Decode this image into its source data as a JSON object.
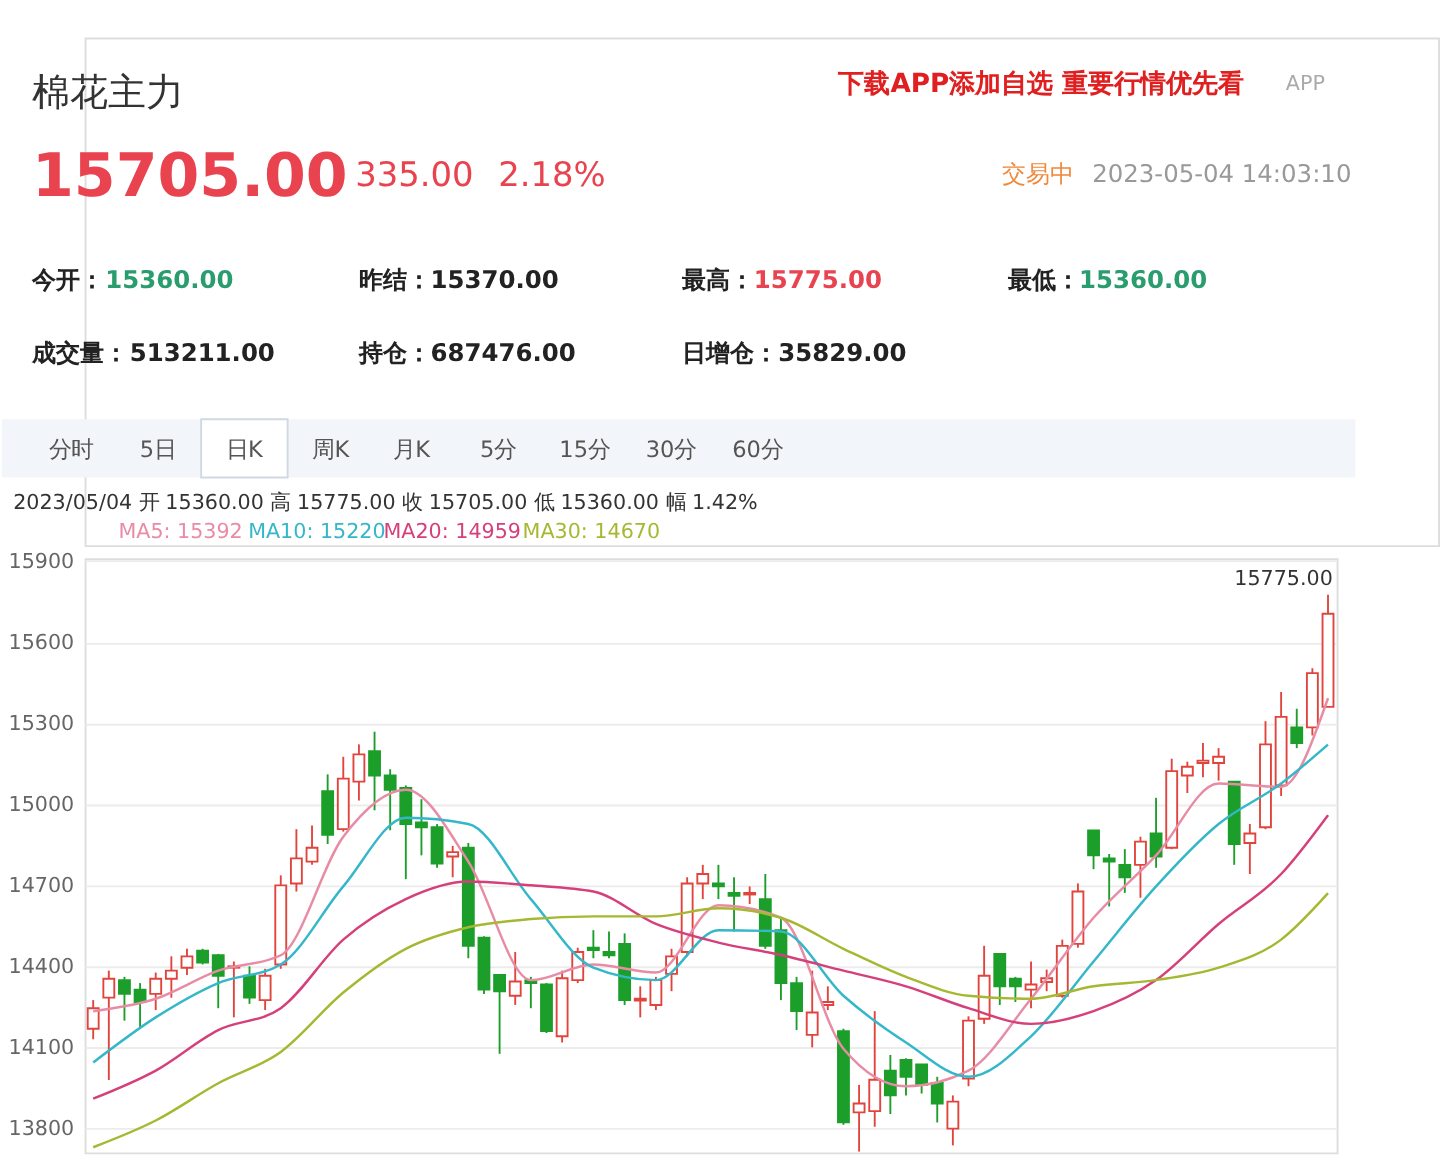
{
  "chart_data": {
    "type": "candlestick",
    "title": "棉花主力",
    "categories": [
      null,
      null,
      null,
      null,
      null,
      null,
      null,
      null,
      null,
      null,
      null,
      null,
      null,
      null,
      null,
      null,
      null,
      null,
      null,
      null,
      null,
      null,
      null,
      null,
      null,
      null,
      null,
      null,
      null,
      null,
      null,
      null,
      null,
      null,
      null,
      null,
      null,
      null,
      null,
      null,
      null,
      null,
      null,
      null,
      null,
      null,
      null,
      null,
      null,
      null,
      null,
      null,
      null,
      null,
      null,
      null,
      null,
      null,
      null,
      null,
      null,
      null,
      null,
      null,
      null,
      null,
      null,
      null,
      null,
      null,
      null,
      null,
      null,
      null,
      null,
      null,
      null,
      null,
      null,
      null
    ],
    "ohlc": [
      [
        14168,
        14274,
        14129,
        14244
      ],
      [
        14283,
        14383,
        13978,
        14353
      ],
      [
        14348,
        14360,
        14198,
        14297
      ],
      [
        14313,
        14337,
        14168,
        14267
      ],
      [
        14297,
        14376,
        14237,
        14353
      ],
      [
        14353,
        14436,
        14283,
        14383
      ],
      [
        14394,
        14464,
        14367,
        14436
      ],
      [
        14457,
        14464,
        14406,
        14413
      ],
      [
        14440,
        14445,
        14244,
        14364
      ],
      [
        14394,
        14417,
        14210,
        14399
      ],
      [
        14364,
        14399,
        14260,
        14283
      ],
      [
        14274,
        14390,
        14237,
        14364
      ],
      [
        14406,
        14736,
        14390,
        14699
      ],
      [
        14706,
        14907,
        14676,
        14799
      ],
      [
        14787,
        14921,
        14775,
        14838
      ],
      [
        15048,
        15110,
        14852,
        14886
      ],
      [
        14907,
        15175,
        14898,
        15094
      ],
      [
        15083,
        15221,
        15013,
        15184
      ],
      [
        15196,
        15268,
        14977,
        15106
      ],
      [
        15106,
        15129,
        14903,
        15053
      ],
      [
        15060,
        15069,
        14722,
        14926
      ],
      [
        14932,
        15018,
        14810,
        14914
      ],
      [
        14914,
        14926,
        14764,
        14780
      ],
      [
        14806,
        14845,
        14729,
        14822
      ],
      [
        14838,
        14856,
        14429,
        14475
      ],
      [
        14505,
        14510,
        14297,
        14313
      ],
      [
        14367,
        14367,
        14075,
        14307
      ],
      [
        14290,
        14452,
        14256,
        14343
      ],
      [
        14348,
        14360,
        14244,
        14337
      ],
      [
        14332,
        14337,
        14152,
        14159
      ],
      [
        14140,
        14383,
        14117,
        14355
      ],
      [
        14348,
        14468,
        14337,
        14452
      ],
      [
        14468,
        14533,
        14429,
        14459
      ],
      [
        14452,
        14528,
        14429,
        14440
      ],
      [
        14482,
        14521,
        14256,
        14274
      ],
      [
        14272,
        14325,
        14210,
        14279
      ],
      [
        14256,
        14360,
        14237,
        14348
      ],
      [
        14371,
        14464,
        14307,
        14436
      ],
      [
        14452,
        14729,
        14436,
        14706
      ],
      [
        14706,
        14775,
        14648,
        14741
      ],
      [
        14706,
        14775,
        14648,
        14695
      ],
      [
        14671,
        14729,
        14528,
        14660
      ],
      [
        14665,
        14695,
        14630,
        14671
      ],
      [
        14648,
        14741,
        14464,
        14475
      ],
      [
        14533,
        14579,
        14274,
        14337
      ],
      [
        14337,
        14360,
        14163,
        14233
      ],
      [
        14145,
        14383,
        14099,
        14228
      ],
      [
        14256,
        14325,
        14237,
        14267
      ],
      [
        14159,
        14168,
        13812,
        13821
      ],
      [
        13858,
        13960,
        13713,
        13891
      ],
      [
        13863,
        14233,
        13805,
        13979
      ],
      [
        14013,
        14071,
        13852,
        13921
      ],
      [
        14052,
        14059,
        13921,
        13990
      ],
      [
        14036,
        14036,
        13928,
        13960
      ],
      [
        13967,
        13990,
        13821,
        13891
      ],
      [
        13798,
        13921,
        13736,
        13898
      ],
      [
        13983,
        14214,
        13955,
        14198
      ],
      [
        14205,
        14475,
        14186,
        14364
      ],
      [
        14445,
        14445,
        14256,
        14325
      ],
      [
        14353,
        14360,
        14267,
        14325
      ],
      [
        14313,
        14417,
        14244,
        14332
      ],
      [
        14341,
        14387,
        14307,
        14355
      ],
      [
        14290,
        14498,
        14283,
        14475
      ],
      [
        14482,
        14706,
        14468,
        14676
      ],
      [
        14902,
        14902,
        14759,
        14810
      ],
      [
        14799,
        14815,
        14621,
        14787
      ],
      [
        14775,
        14833,
        14671,
        14729
      ],
      [
        14775,
        14879,
        14653,
        14861
      ],
      [
        14891,
        15023,
        14764,
        14806
      ],
      [
        14838,
        15168,
        14833,
        15122
      ],
      [
        15106,
        15157,
        15041,
        15138
      ],
      [
        15152,
        15226,
        15099,
        15161
      ],
      [
        15152,
        15207,
        15087,
        15175
      ],
      [
        15083,
        15083,
        14775,
        14852
      ],
      [
        14856,
        14926,
        14741,
        14891
      ],
      [
        14914,
        15307,
        14907,
        15221
      ],
      [
        15069,
        15415,
        15030,
        15323
      ],
      [
        15284,
        15353,
        15207,
        15226
      ],
      [
        15284,
        15503,
        15254,
        15485
      ],
      [
        15360,
        15775,
        15360,
        15705
      ]
    ],
    "series": [
      {
        "name": "MA5: 15392",
        "type": "line",
        "color": "#e88ca6",
        "values": [
          14233,
          null,
          null,
          null,
          14279,
          null,
          null,
          null,
          14383,
          null,
          null,
          null,
          14440,
          null,
          null,
          null,
          14879,
          null,
          null,
          null,
          15053,
          null,
          null,
          null,
          14787,
          null,
          null,
          null,
          14348,
          null,
          null,
          null,
          14406,
          null,
          null,
          null,
          14376,
          null,
          null,
          null,
          14625,
          null,
          null,
          null,
          14579,
          null,
          null,
          null,
          14094,
          null,
          null,
          null,
          13955,
          null,
          null,
          null,
          14013,
          null,
          null,
          null,
          14279,
          null,
          null,
          null,
          14579,
          null,
          null,
          null,
          14810,
          null,
          null,
          null,
          15076,
          null,
          null,
          null,
          15064,
          null,
          null,
          15392
        ]
      },
      {
        "name": "MA10: 15220",
        "type": "line",
        "color": "#34b7c8",
        "values": [
          14043,
          null,
          null,
          null,
          14210,
          null,
          null,
          null,
          14337,
          null,
          null,
          null,
          14406,
          null,
          null,
          null,
          14695,
          null,
          null,
          null,
          14949,
          null,
          null,
          null,
          14926,
          null,
          null,
          null,
          14648,
          null,
          null,
          null,
          14394,
          null,
          null,
          null,
          14348,
          null,
          null,
          null,
          14533,
          null,
          null,
          null,
          14528,
          null,
          null,
          null,
          14290,
          null,
          null,
          null,
          14117,
          null,
          null,
          null,
          13990,
          null,
          null,
          null,
          14140,
          null,
          null,
          null,
          14417,
          null,
          null,
          null,
          14695,
          null,
          null,
          null,
          14926,
          null,
          null,
          null,
          15076,
          null,
          null,
          15220
        ]
      },
      {
        "name": "MA20: 14959",
        "type": "line",
        "color": "#d6407a",
        "values": [
          13909,
          null,
          null,
          null,
          14013,
          null,
          null,
          null,
          14163,
          null,
          null,
          null,
          14244,
          null,
          null,
          null,
          14498,
          null,
          null,
          null,
          14648,
          null,
          null,
          null,
          14713,
          null,
          null,
          null,
          14699,
          null,
          null,
          null,
          14676,
          null,
          null,
          null,
          14556,
          null,
          null,
          null,
          14487,
          null,
          null,
          null,
          14441,
          null,
          null,
          null,
          14383,
          null,
          null,
          null,
          14325,
          null,
          null,
          null,
          14244,
          null,
          null,
          null,
          14186,
          null,
          null,
          null,
          14233,
          null,
          null,
          null,
          14348,
          null,
          null,
          null,
          14556,
          null,
          null,
          null,
          14741,
          null,
          null,
          14959
        ]
      },
      {
        "name": "MA30: 14670",
        "type": "line",
        "color": "#a6b832",
        "values": [
          13729,
          null,
          null,
          null,
          13828,
          null,
          null,
          null,
          13966,
          null,
          null,
          null,
          14082,
          null,
          null,
          null,
          14302,
          null,
          null,
          null,
          14464,
          null,
          null,
          null,
          14544,
          null,
          null,
          null,
          14574,
          null,
          null,
          null,
          14584,
          null,
          null,
          null,
          14584,
          null,
          null,
          null,
          14614,
          null,
          null,
          null,
          14579,
          null,
          null,
          null,
          14464,
          null,
          null,
          null,
          14360,
          null,
          null,
          null,
          14290,
          null,
          null,
          null,
          14279,
          null,
          null,
          null,
          14325,
          null,
          null,
          null,
          14348,
          null,
          null,
          null,
          14394,
          null,
          null,
          null,
          14498,
          null,
          null,
          14670
        ]
      }
    ],
    "ylim": [
      13710,
      15910
    ],
    "yticks": [
      13800,
      14100,
      14400,
      14700,
      15000,
      15300,
      15600,
      15900
    ],
    "grid": "y",
    "tick_labels": "y",
    "annotations": [
      "下载APP添加自选 重要行情优先看",
      "APP",
      "15705.00",
      "335.00",
      "2.18%",
      "交易中",
      "2023-05-04 14:03:10",
      "今开：",
      "15360.00",
      "昨结：",
      "15370.00",
      "最高：",
      "15775.00",
      "最低：",
      "15360.00",
      "成交量：",
      "513211.00",
      "持仓：",
      "687476.00",
      "日增仓：",
      "35829.00",
      "分时",
      "5日",
      "日K",
      "周K",
      "月K",
      "5分",
      "15分",
      "30分",
      "60分",
      "2023/05/04  开 15360.00  高 15775.00  收 15705.00  低 15360.00  幅 1.42%",
      "15775.00"
    ]
  }
}
